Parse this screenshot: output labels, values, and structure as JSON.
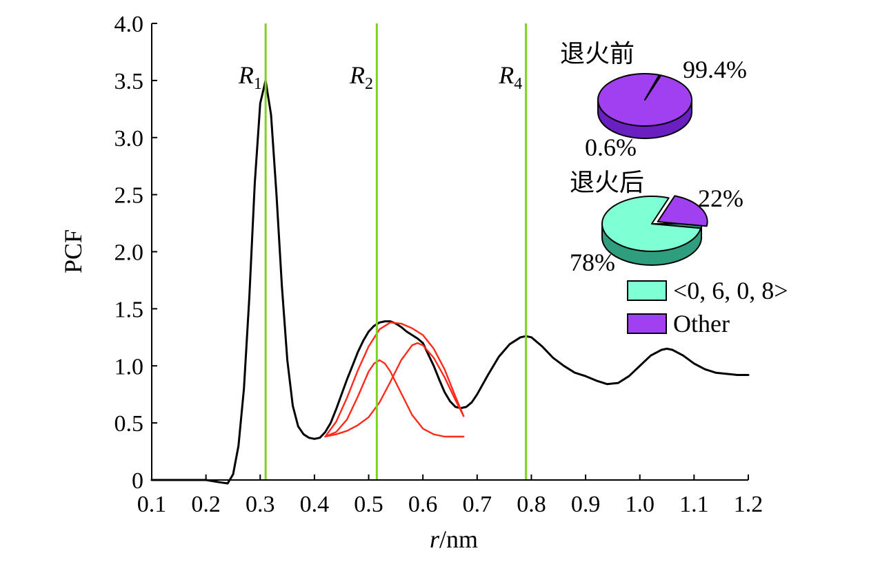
{
  "chart_data": {
    "type": "line",
    "xlabel_italic": "r",
    "xlabel_rest": "/nm",
    "ylabel": "PCF",
    "xlim": [
      0.1,
      1.2
    ],
    "ylim": [
      0,
      4.0
    ],
    "x_ticks": [
      "0.1",
      "0.2",
      "0.3",
      "0.4",
      "0.5",
      "0.6",
      "0.7",
      "0.8",
      "0.9",
      "1.0",
      "1.1",
      "1.2"
    ],
    "y_ticks": [
      "0",
      "0.5",
      "1.0",
      "1.5",
      "2.0",
      "2.5",
      "3.0",
      "3.5",
      "4.0"
    ],
    "x_tick_values": [
      0.1,
      0.2,
      0.3,
      0.4,
      0.5,
      0.6,
      0.7,
      0.8,
      0.9,
      1.0,
      1.1,
      1.2
    ],
    "y_tick_values": [
      0,
      0.5,
      1.0,
      1.5,
      2.0,
      2.5,
      3.0,
      3.5,
      4.0
    ],
    "grid": false,
    "series": [
      {
        "color": "#000000",
        "x": [
          0.1,
          0.2,
          0.225,
          0.24,
          0.25,
          0.26,
          0.27,
          0.28,
          0.29,
          0.3,
          0.31,
          0.32,
          0.33,
          0.34,
          0.35,
          0.36,
          0.37,
          0.38,
          0.39,
          0.4,
          0.41,
          0.42,
          0.43,
          0.44,
          0.45,
          0.46,
          0.47,
          0.48,
          0.49,
          0.5,
          0.51,
          0.52,
          0.53,
          0.54,
          0.55,
          0.56,
          0.57,
          0.58,
          0.59,
          0.6,
          0.61,
          0.62,
          0.63,
          0.64,
          0.65,
          0.66,
          0.67,
          0.68,
          0.69,
          0.7,
          0.72,
          0.74,
          0.76,
          0.78,
          0.79,
          0.8,
          0.82,
          0.84,
          0.86,
          0.88,
          0.9,
          0.92,
          0.94,
          0.96,
          0.98,
          1.0,
          1.02,
          1.04,
          1.05,
          1.06,
          1.08,
          1.1,
          1.12,
          1.14,
          1.16,
          1.18,
          1.2
        ],
        "y": [
          0,
          0,
          -0.02,
          -0.03,
          0.05,
          0.3,
          0.8,
          1.6,
          2.6,
          3.3,
          3.5,
          3.2,
          2.5,
          1.7,
          1.05,
          0.65,
          0.47,
          0.4,
          0.37,
          0.36,
          0.37,
          0.42,
          0.5,
          0.62,
          0.75,
          0.88,
          1.0,
          1.12,
          1.22,
          1.3,
          1.35,
          1.38,
          1.39,
          1.39,
          1.37,
          1.34,
          1.3,
          1.27,
          1.24,
          1.2,
          1.1,
          1.0,
          0.88,
          0.77,
          0.69,
          0.64,
          0.63,
          0.64,
          0.68,
          0.75,
          0.92,
          1.08,
          1.19,
          1.25,
          1.26,
          1.25,
          1.17,
          1.07,
          1.0,
          0.94,
          0.91,
          0.87,
          0.84,
          0.85,
          0.91,
          1.0,
          1.09,
          1.14,
          1.15,
          1.14,
          1.09,
          1.02,
          0.97,
          0.94,
          0.93,
          0.92,
          0.92
        ]
      },
      {
        "color": "#ff2a1a",
        "x": [
          0.42,
          0.44,
          0.46,
          0.48,
          0.5,
          0.52,
          0.54,
          0.56,
          0.58,
          0.6,
          0.62,
          0.64,
          0.66,
          0.675
        ],
        "y": [
          0.38,
          0.51,
          0.72,
          0.96,
          1.17,
          1.32,
          1.38,
          1.37,
          1.33,
          1.27,
          1.15,
          0.97,
          0.73,
          0.56
        ]
      },
      {
        "color": "#ff2a1a",
        "x": [
          0.42,
          0.44,
          0.46,
          0.48,
          0.5,
          0.51,
          0.52,
          0.53,
          0.54,
          0.56,
          0.58,
          0.6,
          0.62,
          0.64,
          0.66,
          0.675
        ],
        "y": [
          0.38,
          0.42,
          0.53,
          0.73,
          0.95,
          1.02,
          1.05,
          1.02,
          0.95,
          0.76,
          0.57,
          0.45,
          0.4,
          0.38,
          0.38,
          0.38
        ]
      },
      {
        "color": "#ff2a1a",
        "x": [
          0.42,
          0.44,
          0.46,
          0.48,
          0.5,
          0.52,
          0.54,
          0.56,
          0.58,
          0.59,
          0.6,
          0.62,
          0.64,
          0.66,
          0.675
        ],
        "y": [
          0.38,
          0.4,
          0.43,
          0.48,
          0.55,
          0.68,
          0.86,
          1.05,
          1.18,
          1.2,
          1.18,
          1.07,
          0.9,
          0.7,
          0.56
        ]
      }
    ],
    "vlines": [
      {
        "x": 0.31,
        "color": "#7ed321",
        "label": "R",
        "sub": "1",
        "label_x": 0.26
      },
      {
        "x": 0.515,
        "color": "#7ed321",
        "label": "R",
        "sub": "2",
        "label_x": 0.465
      },
      {
        "x": 0.79,
        "color": "#7ed321",
        "label": "R",
        "sub": "4",
        "label_x": 0.74
      }
    ],
    "vline_label_y": 3.5,
    "pies": [
      {
        "title": "退火前",
        "slices": [
          {
            "name": "Other",
            "value": 99.4,
            "label": "99.4%",
            "color": "#a040f0",
            "dark": "#6a1fc0"
          },
          {
            "name": "<0, 6, 0, 8>",
            "value": 0.6,
            "label": "0.6%",
            "color": "#7fffd4",
            "dark": "#2e9e7e"
          }
        ]
      },
      {
        "title": "退火后",
        "slices": [
          {
            "name": "Other",
            "value": 22,
            "label": "22%",
            "color": "#a040f0",
            "dark": "#6a1fc0"
          },
          {
            "name": "<0, 6, 0, 8>",
            "value": 78,
            "label": "78%",
            "color": "#7fffd4",
            "dark": "#2e9e7e"
          }
        ]
      }
    ],
    "legend": [
      {
        "label": "<0, 6, 0, 8>",
        "color": "#7fffd4"
      },
      {
        "label": "Other",
        "color": "#a040f0"
      }
    ]
  }
}
